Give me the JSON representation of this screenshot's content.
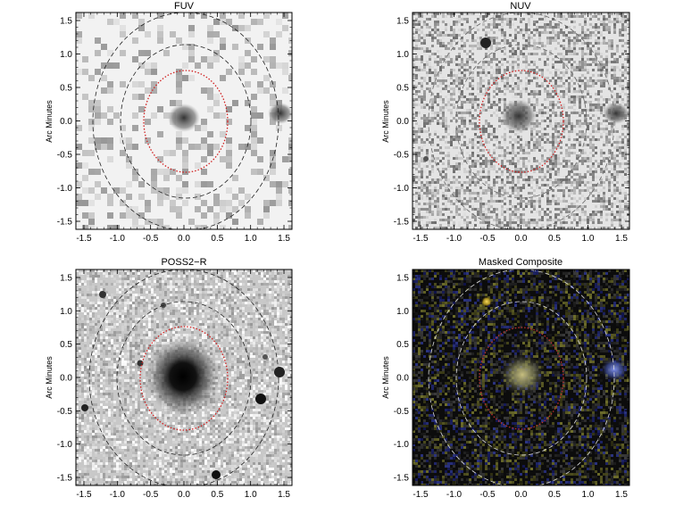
{
  "panels": [
    {
      "id": "fuv",
      "title": "FUV",
      "ylabel": "Arc Minutes",
      "scheme": "light-gray",
      "ticks": [
        "-1.5",
        "-1.0",
        "-0.5",
        "0.0",
        "0.5",
        "1.0",
        "1.5"
      ]
    },
    {
      "id": "nuv",
      "title": "NUV",
      "ylabel": "Arc Minutes",
      "scheme": "noise-gray",
      "ticks": [
        "-1.5",
        "-1.0",
        "-0.5",
        "0.0",
        "0.5",
        "1.0",
        "1.5"
      ]
    },
    {
      "id": "poss2r",
      "title": "POSS2−R",
      "ylabel": "Arc Minutes",
      "scheme": "optical-gray",
      "ticks": [
        "-1.5",
        "-1.0",
        "-0.5",
        "0.0",
        "0.5",
        "1.0",
        "1.5"
      ]
    },
    {
      "id": "composite",
      "title": "Masked Composite",
      "ylabel": "Arc Minutes",
      "scheme": "dark-color",
      "ticks": [
        "-1.5",
        "-1.0",
        "-0.5",
        "0.0",
        "0.5",
        "1.0",
        "1.5"
      ]
    }
  ],
  "colors": {
    "inner_ellipse": "#d02020",
    "outer_ellipse_dark": "#222222",
    "outer_ellipse_light": "#dddddd",
    "composite_uv": "#4a5fd0",
    "composite_optical": "#d8c040"
  }
}
